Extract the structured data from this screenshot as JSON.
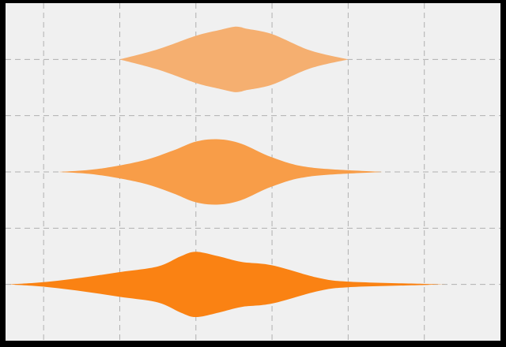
{
  "chart_data": {
    "type": "violin",
    "orientation": "horizontal",
    "title": "",
    "xlabel": "",
    "ylabel": "",
    "grid": true,
    "xlim": [
      -2.5,
      4.0
    ],
    "x_gridlines": [
      -2.0,
      -1.0,
      0.0,
      1.0,
      2.0,
      3.0
    ],
    "y_slots": 3,
    "colors": {
      "background": "#f0f0f0",
      "frame": "#000000",
      "grid": "#b0b0b0"
    },
    "series": [
      {
        "color": "#f5af70",
        "x": [
          -1.0,
          -0.5,
          0.0,
          0.3,
          0.5,
          0.6,
          0.65,
          1.0,
          1.5,
          2.0
        ],
        "width": [
          0.0,
          0.18,
          0.42,
          0.52,
          0.58,
          0.57,
          0.55,
          0.45,
          0.16,
          0.0
        ]
      },
      {
        "color": "#f89d48",
        "x": [
          -1.8,
          -1.3,
          -0.7,
          -0.3,
          0.0,
          0.3,
          0.6,
          1.0,
          1.5,
          2.45
        ],
        "width": [
          0.0,
          0.05,
          0.2,
          0.38,
          0.54,
          0.58,
          0.5,
          0.26,
          0.08,
          0.0
        ]
      },
      {
        "color": "#fa8213",
        "x": [
          -2.45,
          -2.0,
          -1.5,
          -1.0,
          -0.5,
          -0.2,
          0.0,
          0.3,
          0.6,
          1.0,
          1.6,
          2.0,
          3.0,
          3.3
        ],
        "width": [
          0.0,
          0.04,
          0.12,
          0.22,
          0.32,
          0.5,
          0.58,
          0.5,
          0.4,
          0.34,
          0.12,
          0.05,
          0.01,
          0.0
        ]
      }
    ]
  }
}
